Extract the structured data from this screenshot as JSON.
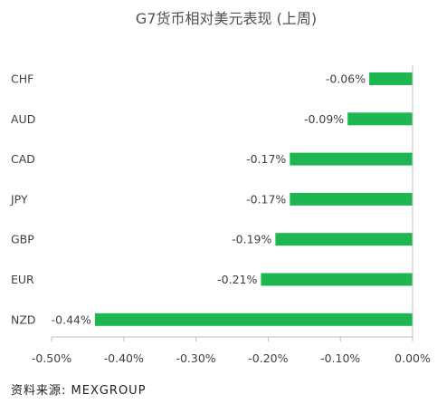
{
  "chart_data": {
    "type": "bar",
    "orientation": "horizontal",
    "title": "G7货币相对美元表现 (上周)",
    "categories": [
      "CHF",
      "AUD",
      "CAD",
      "JPY",
      "GBP",
      "EUR",
      "NZD"
    ],
    "values": [
      -0.06,
      -0.09,
      -0.17,
      -0.17,
      -0.19,
      -0.21,
      -0.44
    ],
    "data_labels": [
      "-0.06%",
      "-0.09%",
      "-0.17%",
      "-0.17%",
      "-0.19%",
      "-0.21%",
      "-0.44%"
    ],
    "xlim": [
      -0.5,
      0
    ],
    "x_ticks": [
      -0.5,
      -0.4,
      -0.3,
      -0.2,
      -0.1,
      0
    ],
    "x_tick_labels": [
      "-0.50%",
      "-0.40%",
      "-0.30%",
      "-0.20%",
      "-0.10%",
      "0.00%"
    ],
    "bar_color": "#1db650",
    "axis_color": "#bfbfbf",
    "grid": false,
    "legend": "none"
  },
  "source_text": "资料来源: MEXGROUP"
}
